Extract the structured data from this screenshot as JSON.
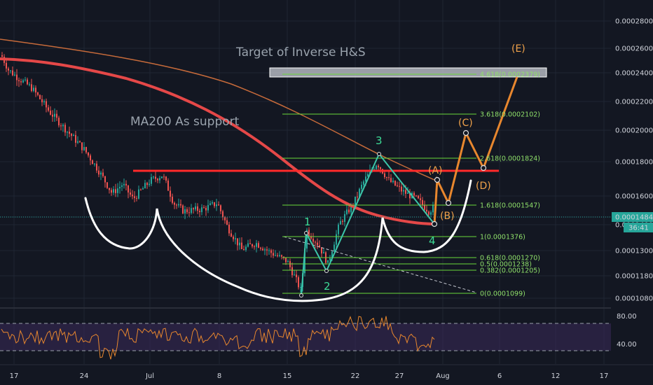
{
  "chart_data": {
    "type": "candlestick",
    "x_tick_labels": [
      "17",
      "24",
      "Jul",
      "8",
      "15",
      "22",
      "27",
      "Aug",
      "6",
      "12",
      "17"
    ],
    "y_tick_labels": [
      "0.0002800",
      "0.0002600",
      "0.0002400",
      "0.0002200",
      "0.0002000",
      "0.0001800",
      "0.0001600",
      "0.0001484",
      "0.0001400",
      "0.0001300",
      "0.0001180",
      "0.0001080"
    ],
    "ylim": [
      0.000104,
      0.000295
    ],
    "y_scale": "log",
    "price_label": "0.0001484",
    "price_label_secondary": "36:41",
    "annotations": {
      "target": "Target of Inverse H&S",
      "ma200": "MA200 As support"
    },
    "wave_labels_impulse": [
      "1",
      "2",
      "3",
      "4"
    ],
    "wave_labels_abc": [
      "(A)",
      "(B)",
      "(C)",
      "(D)",
      "(E)"
    ],
    "fib_levels": [
      {
        "label": "4.618(0.0002379)",
        "value": 0.0002379
      },
      {
        "label": "3.618(0.0002102)",
        "value": 0.0002102
      },
      {
        "label": "2.618(0.0001824)",
        "value": 0.0001824
      },
      {
        "label": "1.618(0.0001547)",
        "value": 0.0001547
      },
      {
        "label": "1(0.0001376)",
        "value": 0.0001376
      },
      {
        "label": "0.618(0.0001270)",
        "value": 0.000127
      },
      {
        "label": "0.5(0.0001238)",
        "value": 0.0001238
      },
      {
        "label": "0.382(0.0001205)",
        "value": 0.0001205
      },
      {
        "label": "0(0.0001099)",
        "value": 0.0001099
      }
    ],
    "resistance_level": 0.000175,
    "oscillator": {
      "tick_labels": [
        "80.00",
        "40.00"
      ],
      "upper_band": 70,
      "lower_band": 30
    }
  },
  "colors": {
    "background": "#131722",
    "candle_up": "#26a69a",
    "candle_down": "#ef5350",
    "ma200": "#e54848",
    "ma_thin": "#c66a3a",
    "fib": "#6ad83a",
    "wave_impulse": "#3cc6a9",
    "wave_abc": "#e8872e",
    "oscillator": "#e8872e"
  }
}
